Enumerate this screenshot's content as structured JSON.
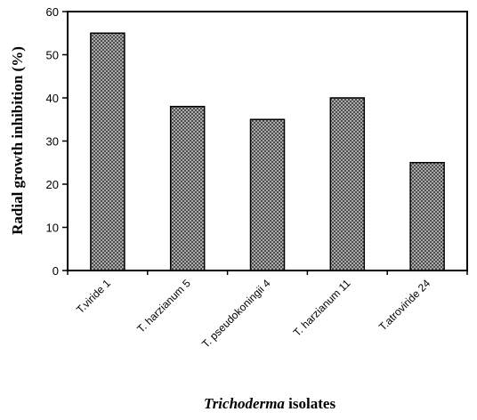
{
  "chart_data": {
    "type": "bar",
    "title": "",
    "xlabel_italic": "Trichoderma",
    "xlabel_rest": " isolates",
    "ylabel": "Radial growth inhibition (%)",
    "categories": [
      "T.viride 1",
      "T. harzianum 5",
      "T. pseudokoningii 4",
      "T. harzianum 11",
      "T.atroviride 24"
    ],
    "values": [
      55,
      38,
      35,
      40,
      25
    ],
    "ylim": [
      0,
      60
    ],
    "yticks": [
      0,
      10,
      20,
      30,
      40,
      50,
      60
    ],
    "grid": false,
    "legend": "none",
    "bar_pattern": "crosshatch-gray"
  }
}
